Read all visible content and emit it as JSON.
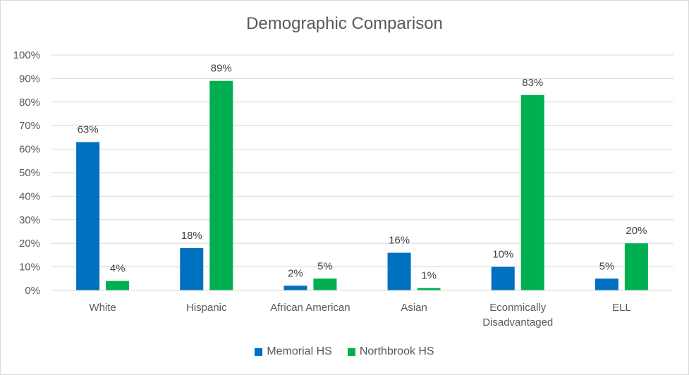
{
  "chart_data": {
    "type": "bar",
    "title": "Demographic Comparison",
    "categories": [
      [
        "White"
      ],
      [
        "Hispanic"
      ],
      [
        "African American"
      ],
      [
        "Asian"
      ],
      [
        "Econmically",
        "Disadvantaged"
      ],
      [
        "ELL"
      ]
    ],
    "series": [
      {
        "name": "Memorial HS",
        "color": "#0070c0",
        "values": [
          63,
          18,
          2,
          16,
          10,
          5
        ],
        "labels": [
          "63%",
          "18%",
          "2%",
          "16%",
          "10%",
          "5%"
        ]
      },
      {
        "name": "Northbrook HS",
        "color": "#00b050",
        "values": [
          4,
          89,
          5,
          1,
          83,
          20
        ],
        "labels": [
          "4%",
          "89%",
          "5%",
          "1%",
          "83%",
          "20%"
        ]
      }
    ],
    "yticks": [
      "0%",
      "10%",
      "20%",
      "30%",
      "40%",
      "50%",
      "60%",
      "70%",
      "80%",
      "90%",
      "100%"
    ],
    "ylim": [
      0,
      100
    ],
    "xlabel": "",
    "ylabel": "",
    "grid": true,
    "legend_position": "bottom"
  }
}
